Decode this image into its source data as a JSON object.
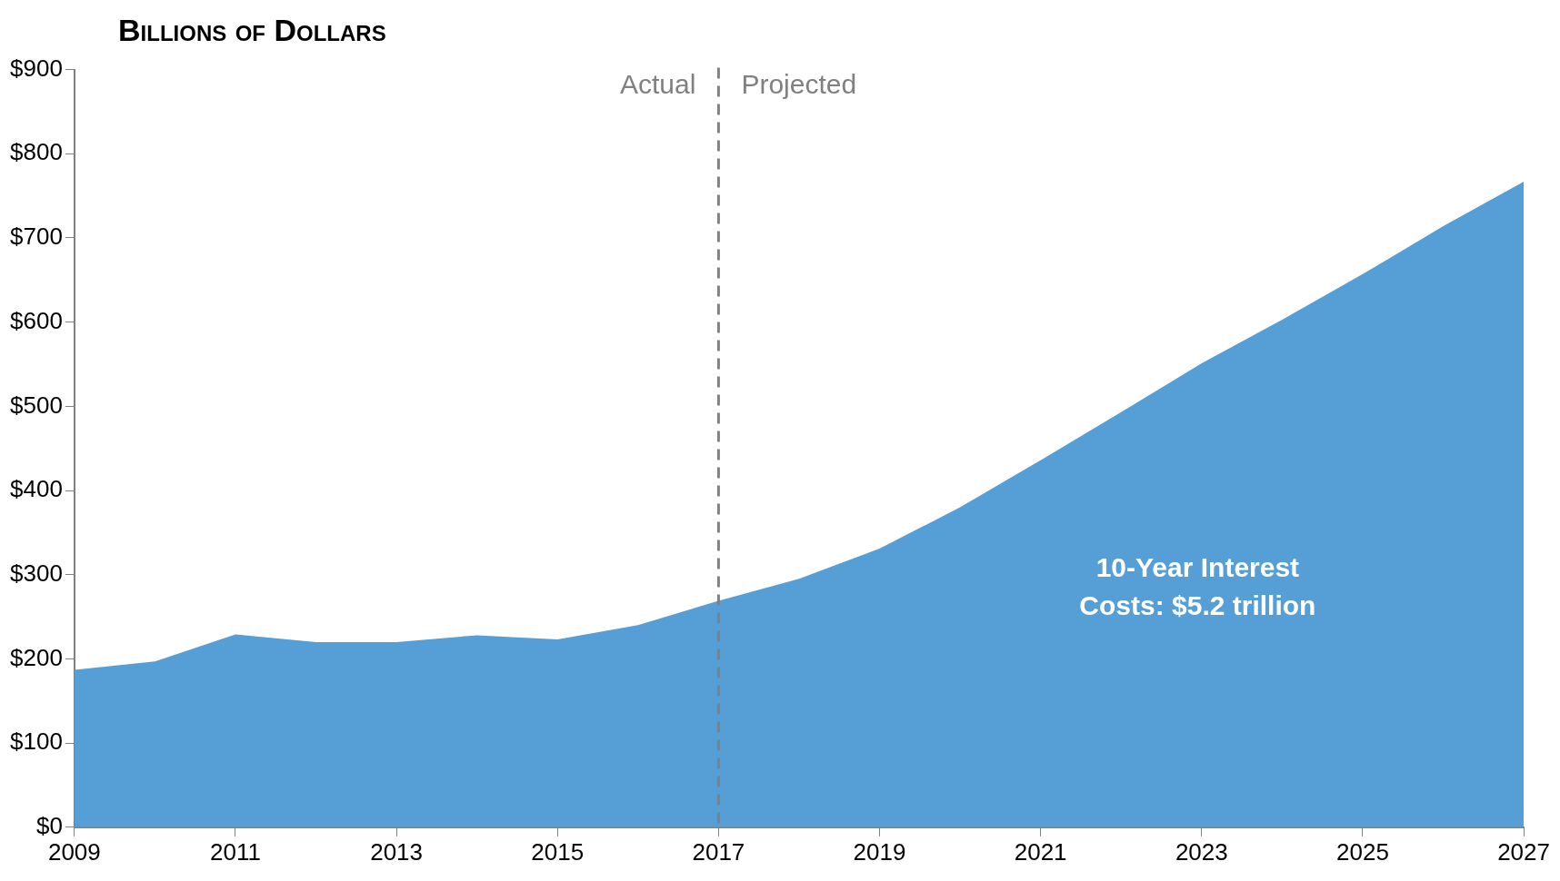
{
  "chart_data": {
    "type": "area",
    "title": "Billions of Dollars",
    "x": [
      2009,
      2010,
      2011,
      2012,
      2013,
      2014,
      2015,
      2016,
      2017,
      2018,
      2019,
      2020,
      2021,
      2022,
      2023,
      2024,
      2025,
      2026,
      2027
    ],
    "series": [
      {
        "color": "#559fd6",
        "values": [
          187,
          197,
          229,
          220,
          220,
          228,
          223,
          240,
          269,
          295,
          331,
          380,
          436,
          493,
          551,
          603,
          657,
          714,
          767
        ]
      }
    ],
    "xlim": [
      2009,
      2027
    ],
    "xticks": [
      2009,
      2011,
      2013,
      2015,
      2017,
      2019,
      2021,
      2023,
      2025,
      2027
    ],
    "ylim": [
      0,
      900
    ],
    "yticks": [
      {
        "value": 0,
        "label": "$0"
      },
      {
        "value": 100,
        "label": "$100"
      },
      {
        "value": 200,
        "label": "$200"
      },
      {
        "value": 300,
        "label": "$300"
      },
      {
        "value": 400,
        "label": "$400"
      },
      {
        "value": 500,
        "label": "$500"
      },
      {
        "value": 600,
        "label": "$600"
      },
      {
        "value": 700,
        "label": "$700"
      },
      {
        "value": 800,
        "label": "$800"
      },
      {
        "value": 900,
        "label": "$900"
      }
    ],
    "ref_lines": [
      {
        "axis": "x",
        "value": 2017,
        "color": "#808080",
        "line_style": "dashed"
      }
    ],
    "annotations": [
      "Actual",
      "Projected",
      "10-Year Interest Costs: $5.2 trillion"
    ],
    "grid": false,
    "legend": false
  }
}
